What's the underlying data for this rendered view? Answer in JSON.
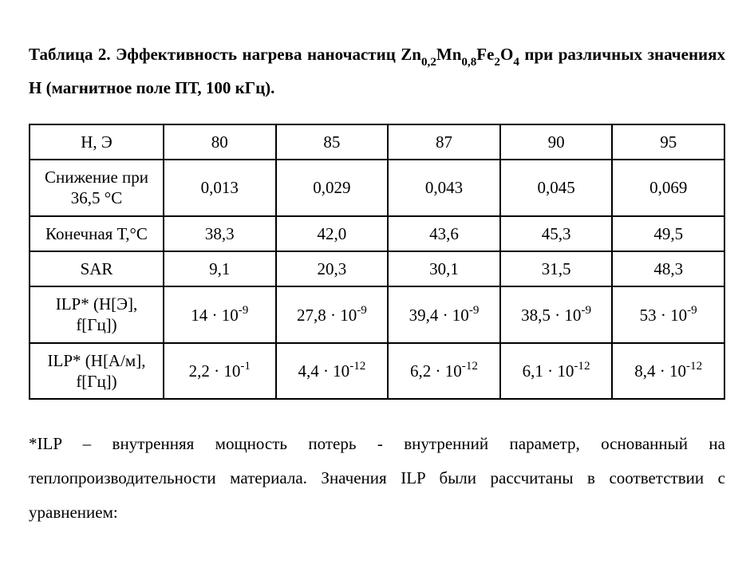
{
  "caption": {
    "prefix": "Таблица 2. Эффективность нагрева наночастиц Zn",
    "sub1": "0,2",
    "mid1": "Mn",
    "sub2": "0,8",
    "mid2": "Fe",
    "sub3": "2",
    "mid3": "O",
    "sub4": "4",
    "suffix": " при различных значениях Н (магнитное поле ПТ, 100 кГц)."
  },
  "table": {
    "type": "table",
    "border_color": "#000000",
    "background_color": "#ffffff",
    "text_color": "#000000",
    "font_family": "Times New Roman",
    "font_size_pt": 16,
    "header": {
      "row_label": "Н, Э",
      "values": [
        "80",
        "85",
        "87",
        "90",
        "95"
      ]
    },
    "rows": [
      {
        "label_line1": "Снижение при",
        "label_line2": "36,5 °С",
        "cells": [
          {
            "plain": "0,013"
          },
          {
            "plain": "0,029"
          },
          {
            "plain": "0,043"
          },
          {
            "plain": "0,045"
          },
          {
            "plain": "0,069"
          }
        ]
      },
      {
        "label_line1": "Конечная Т,°С",
        "label_line2": "",
        "cells": [
          {
            "plain": "38,3"
          },
          {
            "plain": "42,0"
          },
          {
            "plain": "43,6"
          },
          {
            "plain": "45,3"
          },
          {
            "plain": "49,5"
          }
        ]
      },
      {
        "label_line1": "SAR",
        "label_line2": "",
        "cells": [
          {
            "plain": "9,1"
          },
          {
            "plain": "20,3"
          },
          {
            "plain": "30,1"
          },
          {
            "plain": "31,5"
          },
          {
            "plain": "48,3"
          }
        ]
      },
      {
        "label_line1": "ILP* (Н[Э],",
        "label_line2": "f[Гц])",
        "cells": [
          {
            "base": "14 · 10",
            "exp": "-9"
          },
          {
            "base": "27,8 · 10",
            "exp": "-9"
          },
          {
            "base": "39,4 · 10",
            "exp": "-9"
          },
          {
            "base": "38,5 · 10",
            "exp": "-9"
          },
          {
            "base": "53 · 10",
            "exp": "-9"
          }
        ]
      },
      {
        "label_line1": "ILP* (Н[А/м],",
        "label_line2": "f[Гц])",
        "cells": [
          {
            "base": "2,2 · 10",
            "exp": "-1"
          },
          {
            "base": "4,4 · 10",
            "exp": "-12"
          },
          {
            "base": "6,2 · 10",
            "exp": "-12"
          },
          {
            "base": "6,1 · 10",
            "exp": "-12"
          },
          {
            "base": "8,4 · 10",
            "exp": "-12"
          }
        ]
      }
    ]
  },
  "footnote": "*ILP – внутренняя мощность потерь - внутренний параметр, основанный на теплопроизводительности материала. Значения ILP были рассчитаны в соответствии с уравнением:"
}
